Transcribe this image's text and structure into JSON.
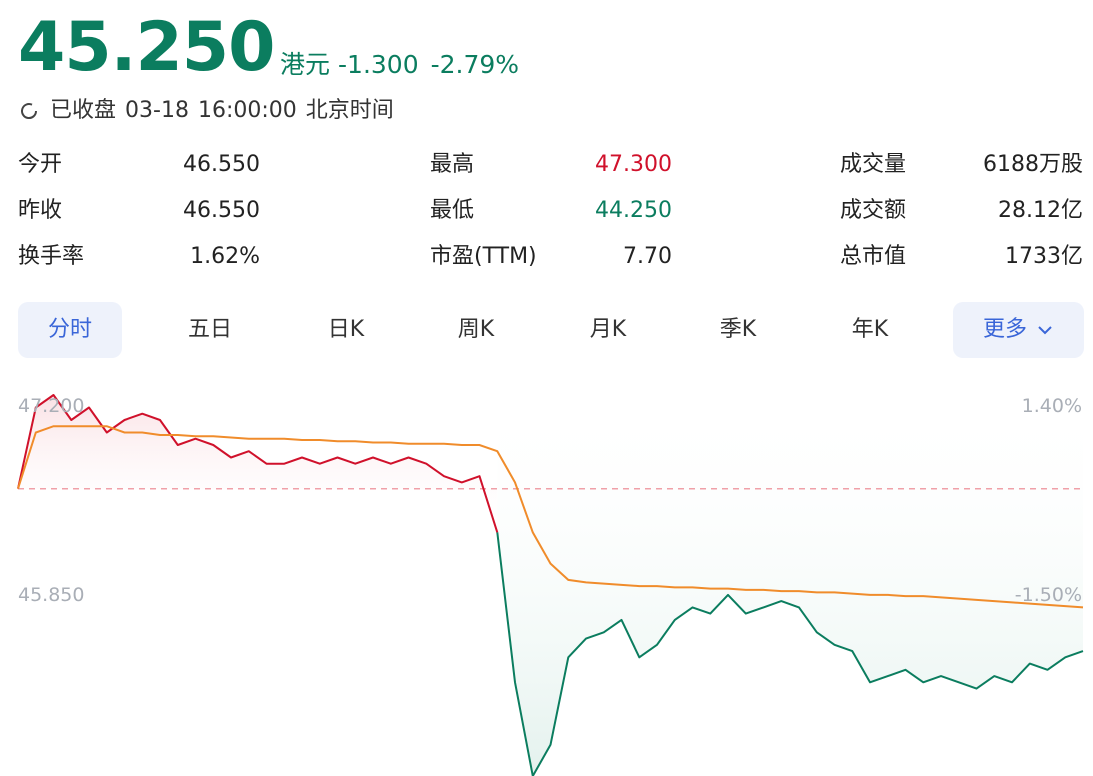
{
  "quote": {
    "price": "45.250",
    "currency": "港元",
    "change": "-1.300",
    "change_pct": "-2.79%",
    "status": "已收盘",
    "date": "03-18",
    "time": "16:00:00",
    "timezone": "北京时间"
  },
  "stats": {
    "open_label": "今开",
    "open": "46.550",
    "prev_close_label": "昨收",
    "prev_close": "46.550",
    "turnover_rate_label": "换手率",
    "turnover_rate": "1.62%",
    "high_label": "最高",
    "high": "47.300",
    "low_label": "最低",
    "low": "44.250",
    "pe_label": "市盈(TTM)",
    "pe": "7.70",
    "volume_label": "成交量",
    "volume": "6188万股",
    "amount_label": "成交额",
    "amount": "28.12亿",
    "market_cap_label": "总市值",
    "market_cap": "1733亿"
  },
  "tabs": {
    "intraday": "分时",
    "five_day": "五日",
    "daily_k": "日K",
    "weekly_k": "周K",
    "monthly_k": "月K",
    "quarterly_k": "季K",
    "yearly_k": "年K",
    "more": "更多"
  },
  "colors": {
    "up": "#d0112b",
    "down": "#0b7d5f",
    "avg_line": "#f08c2b",
    "accent": "#3a66d8"
  },
  "chart_data": {
    "type": "line",
    "y_ticks_left": [
      "47.200",
      "45.850"
    ],
    "y_ticks_right": [
      "1.40%",
      "-1.50%"
    ],
    "reference_price": 46.55,
    "ylim": [
      44.25,
      47.3
    ],
    "x": [
      0,
      5,
      10,
      15,
      20,
      25,
      30,
      35,
      40,
      45,
      50,
      55,
      60,
      65,
      70,
      75,
      80,
      85,
      90,
      95,
      100,
      105,
      110,
      115,
      120,
      125,
      130,
      135,
      140,
      145,
      150,
      155,
      160,
      165,
      170,
      175,
      180,
      185,
      190,
      195,
      200,
      205,
      210,
      215,
      220,
      225,
      230,
      235,
      240,
      245,
      250,
      255,
      260,
      265,
      270,
      275,
      280,
      285,
      290,
      295,
      300
    ],
    "series": [
      {
        "values": [
          46.55,
          47.2,
          47.3,
          47.1,
          47.2,
          47.0,
          47.1,
          47.15,
          47.1,
          46.9,
          46.95,
          46.9,
          46.8,
          46.85,
          46.75,
          46.75,
          46.8,
          46.75,
          46.8,
          46.75,
          46.8,
          46.75,
          46.8,
          46.75,
          46.65,
          46.6,
          46.65,
          46.2,
          45.0,
          44.25,
          44.5,
          45.2,
          45.35,
          45.4,
          45.5,
          45.2,
          45.3,
          45.5,
          45.6,
          45.55,
          45.7,
          45.55,
          45.6,
          45.65,
          45.6,
          45.4,
          45.3,
          45.25,
          45.0,
          45.05,
          45.1,
          45.0,
          45.05,
          45.0,
          44.95,
          45.05,
          45.0,
          45.15,
          45.1,
          45.2,
          45.25
        ]
      },
      {
        "values": [
          46.55,
          47.0,
          47.05,
          47.05,
          47.05,
          47.05,
          47.0,
          47.0,
          46.98,
          46.98,
          46.97,
          46.97,
          46.96,
          46.95,
          46.95,
          46.95,
          46.94,
          46.94,
          46.93,
          46.93,
          46.92,
          46.92,
          46.91,
          46.91,
          46.91,
          46.9,
          46.9,
          46.85,
          46.6,
          46.2,
          45.95,
          45.82,
          45.8,
          45.79,
          45.78,
          45.77,
          45.77,
          45.76,
          45.76,
          45.75,
          45.75,
          45.74,
          45.74,
          45.73,
          45.73,
          45.72,
          45.72,
          45.71,
          45.7,
          45.7,
          45.69,
          45.69,
          45.68,
          45.67,
          45.66,
          45.65,
          45.64,
          45.63,
          45.62,
          45.61,
          45.6
        ]
      }
    ]
  }
}
